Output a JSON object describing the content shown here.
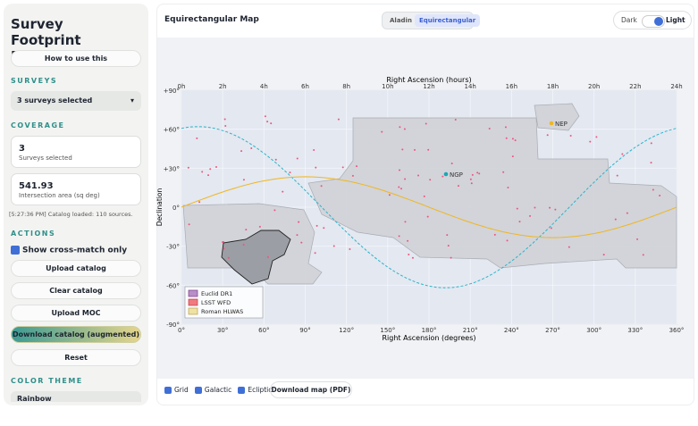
{
  "sidebar": {
    "title": "Survey Footprint Explorer",
    "help_button": "How to use this",
    "surveys_heading": "SURVEYS",
    "surveys_select": "3 surveys selected",
    "coverage_heading": "COVERAGE",
    "coverage_cards": [
      {
        "value": 3,
        "label": "Surveys selected"
      },
      {
        "value": 541.93,
        "label": "Intersection area (sq deg)"
      }
    ],
    "log": "[5:27:36 PM] Catalog loaded: 110 sources.",
    "actions_heading": "ACTIONS",
    "cross_match": "Show cross-match only",
    "buttons": [
      "Upload catalog",
      "Clear catalog",
      "Upload MOC",
      "Download catalog (augmented)",
      "Reset"
    ],
    "color_theme_heading": "COLOR THEME",
    "color_theme_select": "Rainbow"
  },
  "header": {
    "title": "Equirectangular Map",
    "view_tabs": [
      "Aladin",
      "Equirectangular"
    ],
    "theme_toggle": [
      "Dark",
      "Light"
    ]
  },
  "map": {
    "top_axis_title": "Right Ascension (hours)",
    "top_ticks": [
      "0h",
      "2h",
      "4h",
      "6h",
      "8h",
      "10h",
      "12h",
      "14h",
      "16h",
      "18h",
      "20h",
      "22h",
      "24h"
    ],
    "bottom_axis_title": "Right Ascension (degrees)",
    "bottom_ticks": [
      "0°",
      "30°",
      "60°",
      "90°",
      "120°",
      "150°",
      "180°",
      "210°",
      "240°",
      "270°",
      "300°",
      "330°",
      "360°"
    ],
    "y_axis_title": "Declination",
    "y_ticks": [
      "+90°",
      "+60°",
      "+30°",
      "0°",
      "-30°",
      "-60°",
      "-90°"
    ],
    "annotations": [
      "NGP",
      "NEP"
    ],
    "legend": [
      "Euclid DR1",
      "LSST WFD",
      "Roman HLWAS"
    ]
  },
  "footer": {
    "checkboxes": [
      "Grid",
      "Galactic",
      "Ecliptic"
    ],
    "download_button": "Download map (PDF)"
  }
}
